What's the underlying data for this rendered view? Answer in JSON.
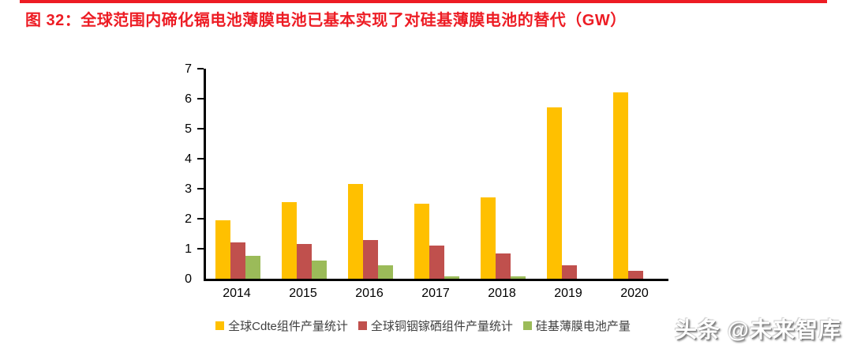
{
  "page": {
    "title": "图 32：全球范围内碲化镉电池薄膜电池已基本实现了对硅基薄膜电池的替代（GW）",
    "accent_color": "#ED1C24",
    "watermark": "头条 @未来智库"
  },
  "chart_data": {
    "type": "bar",
    "title": "全球范围内碲化镉电池薄膜电池已基本实现了对硅基薄膜电池的替代",
    "unit": "GW",
    "categories": [
      "2014",
      "2015",
      "2016",
      "2017",
      "2018",
      "2019",
      "2020"
    ],
    "series": [
      {
        "name": "全球Cdte组件产量统计",
        "color": "#FFC000",
        "values": [
          1.95,
          2.55,
          3.15,
          2.5,
          2.7,
          5.7,
          6.2
        ]
      },
      {
        "name": "全球铜铟镓硒组件产量统计",
        "color": "#C0504D",
        "values": [
          1.2,
          1.15,
          1.3,
          1.1,
          0.85,
          0.45,
          0.27
        ]
      },
      {
        "name": "硅基薄膜电池产量",
        "color": "#9BBB59",
        "values": [
          0.75,
          0.6,
          0.45,
          0.08,
          0.07,
          0,
          0
        ]
      }
    ],
    "xlabel": "",
    "ylabel": "",
    "ylim": [
      0,
      7
    ],
    "ytick_step": 1,
    "grid": false,
    "legend_position": "bottom"
  }
}
